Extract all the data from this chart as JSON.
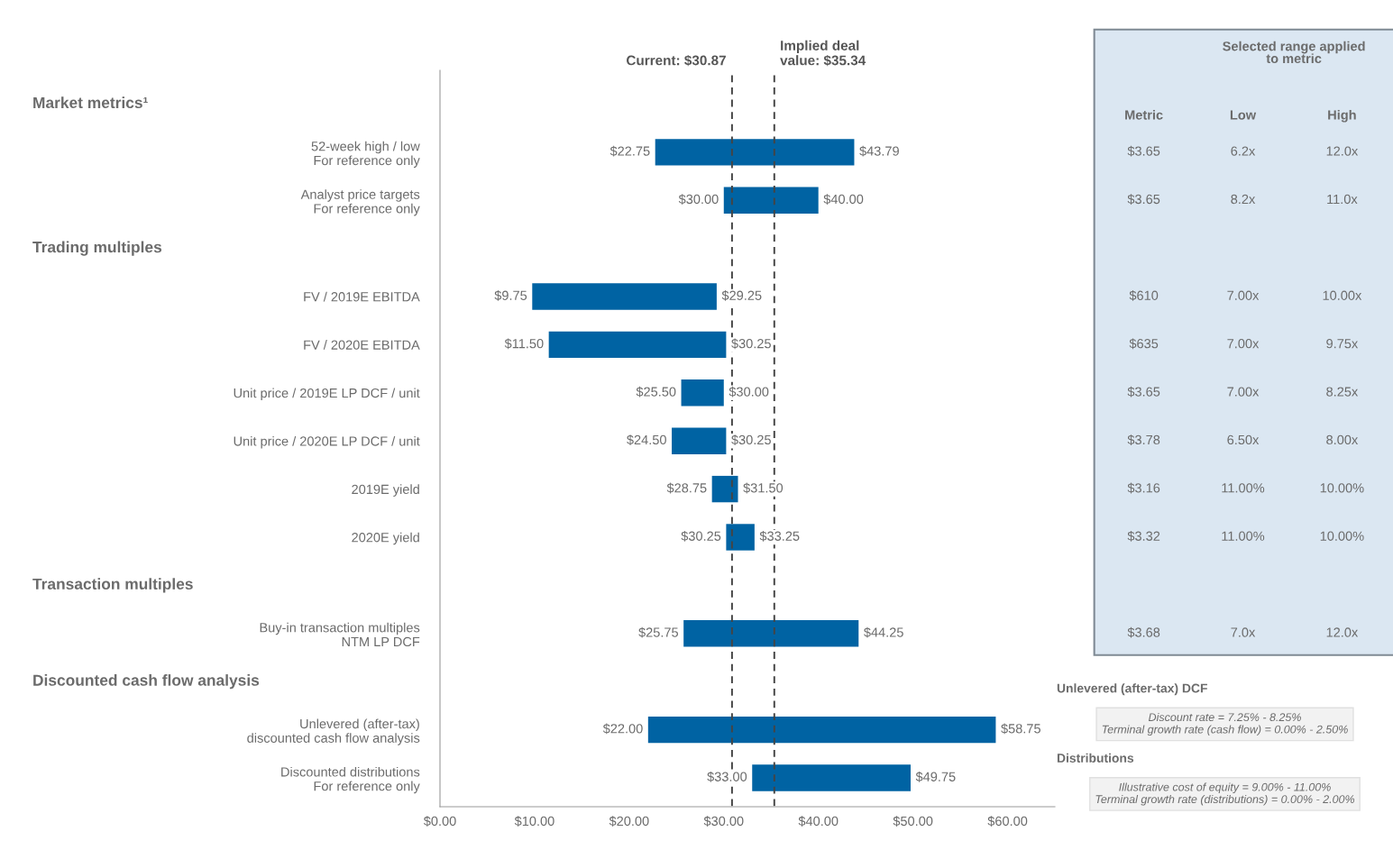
{
  "chart_data": [
    {
      "type": "bar",
      "orientation": "horizontal",
      "categories": [
        null,
        "52-week high / low\nFor reference only",
        "Analyst price targets\nFor reference only",
        null,
        "FV / 2019E EBITDA",
        "FV / 2020E EBITDA",
        "Unit price / 2019E LP DCF / unit",
        "Unit price / 2020E LP DCF / unit",
        "2019E yield",
        "2020E yield",
        null,
        "Buy-in transaction multiples\nNTM LP DCF",
        null,
        "Unlevered (after-tax)\ndiscounted cash flow analysis",
        "Discounted distributions\nFor reference only"
      ],
      "base": [
        null,
        22.75,
        30.0,
        null,
        9.75,
        11.5,
        25.5,
        24.5,
        28.75,
        30.25,
        null,
        25.75,
        null,
        22.0,
        33.0
      ],
      "values": [
        null,
        21.04,
        10.0,
        null,
        19.5,
        18.75,
        4.5,
        5.75,
        2.75,
        3.0,
        null,
        18.5,
        null,
        36.75,
        16.75
      ],
      "color": "#0063a3",
      "xlim": [
        0,
        65
      ],
      "xticks": [
        {
          "value": 0,
          "label": "$0.00"
        },
        {
          "value": 10,
          "label": "$10.00"
        },
        {
          "value": 20,
          "label": "$20.00"
        },
        {
          "value": 30,
          "label": "$30.00"
        },
        {
          "value": 40,
          "label": "$40.00"
        },
        {
          "value": 50,
          "label": "$50.00"
        },
        {
          "value": 60,
          "label": "$60.00"
        }
      ],
      "ref_lines": [
        {
          "axis": "x",
          "value": 30.87,
          "label": "Current: $30.87",
          "line_style": "dashed"
        },
        {
          "axis": "x",
          "value": 35.34,
          "label": "Implied deal\nvalue: $35.34",
          "line_style": "dashed"
        }
      ],
      "annotations": [
        "Market metrics¹",
        "Trading multiples",
        "Transaction multiples",
        "Discounted cash flow analysis",
        {
          "text": "$22.75",
          "x": 22.75,
          "y": "52-week high / low\nFor reference only"
        },
        {
          "text": "$43.79",
          "x": 43.79,
          "y": "52-week high / low\nFor reference only"
        },
        {
          "text": "$30.00",
          "x": 30.0,
          "y": "Analyst price targets\nFor reference only"
        },
        {
          "text": "$40.00",
          "x": 40.0,
          "y": "Analyst price targets\nFor reference only"
        },
        {
          "text": "$9.75",
          "x": 9.75,
          "y": "FV / 2019E EBITDA"
        },
        {
          "text": "$29.25",
          "x": 29.25,
          "y": "FV / 2019E EBITDA"
        },
        {
          "text": "$11.50",
          "x": 11.5,
          "y": "FV / 2020E EBITDA"
        },
        {
          "text": "$30.25",
          "x": 30.25,
          "y": "FV / 2020E EBITDA"
        },
        {
          "text": "$25.50",
          "x": 25.5,
          "y": "Unit price / 2019E LP DCF / unit"
        },
        {
          "text": "$30.00",
          "x": 30.0,
          "y": "Unit price / 2019E LP DCF / unit"
        },
        {
          "text": "$24.50",
          "x": 24.5,
          "y": "Unit price / 2020E LP DCF / unit"
        },
        {
          "text": "$30.25",
          "x": 30.25,
          "y": "Unit price / 2020E LP DCF / unit"
        },
        {
          "text": "$28.75",
          "x": 28.75,
          "y": "2019E yield"
        },
        {
          "text": "$31.50",
          "x": 31.5,
          "y": "2019E yield"
        },
        {
          "text": "$30.25",
          "x": 30.25,
          "y": "2020E yield"
        },
        {
          "text": "$33.25",
          "x": 33.25,
          "y": "2020E yield"
        },
        {
          "text": "$25.75",
          "x": 25.75,
          "y": "Buy-in transaction multiples\nNTM LP DCF"
        },
        {
          "text": "$44.25",
          "x": 44.25,
          "y": "Buy-in transaction multiples\nNTM LP DCF"
        },
        {
          "text": "$22.00",
          "x": 22.0,
          "y": "Unlevered (after-tax)\ndiscounted cash flow analysis"
        },
        {
          "text": "$58.75",
          "x": 58.75,
          "y": "Unlevered (after-tax)\ndiscounted cash flow analysis"
        },
        {
          "text": "$33.00",
          "x": 33.0,
          "y": "Discounted distributions\nFor reference only"
        },
        {
          "text": "$49.75",
          "x": 49.75,
          "y": "Discounted distributions\nFor reference only"
        }
      ],
      "grid": false
    },
    {
      "type": "other",
      "annotations": [
        "Selected range applied\nto metric",
        "Metric",
        "Low",
        "High",
        "$3.65",
        "6.2x",
        "12.0x",
        "$3.65",
        "8.2x",
        "11.0x",
        "$610",
        "7.00x",
        "10.00x",
        "$635",
        "7.00x",
        "9.75x",
        "$3.65",
        "7.00x",
        "8.25x",
        "$3.78",
        "6.50x",
        "8.00x",
        "$3.16",
        "11.00%",
        "10.00%",
        "$3.32",
        "11.00%",
        "10.00%",
        "$3.68",
        "7.0x",
        "12.0x"
      ]
    },
    {
      "type": "other",
      "annotations": [
        "Unlevered (after-tax) DCF",
        "Discount rate = 7.25% - 8.25%\nTerminal growth rate (cash flow) = 0.00% - 2.50%",
        "Distributions",
        "Illustrative cost of equity = 9.00% - 11.00%\nTerminal growth rate (distributions) = 0.00% - 2.00%"
      ]
    }
  ]
}
